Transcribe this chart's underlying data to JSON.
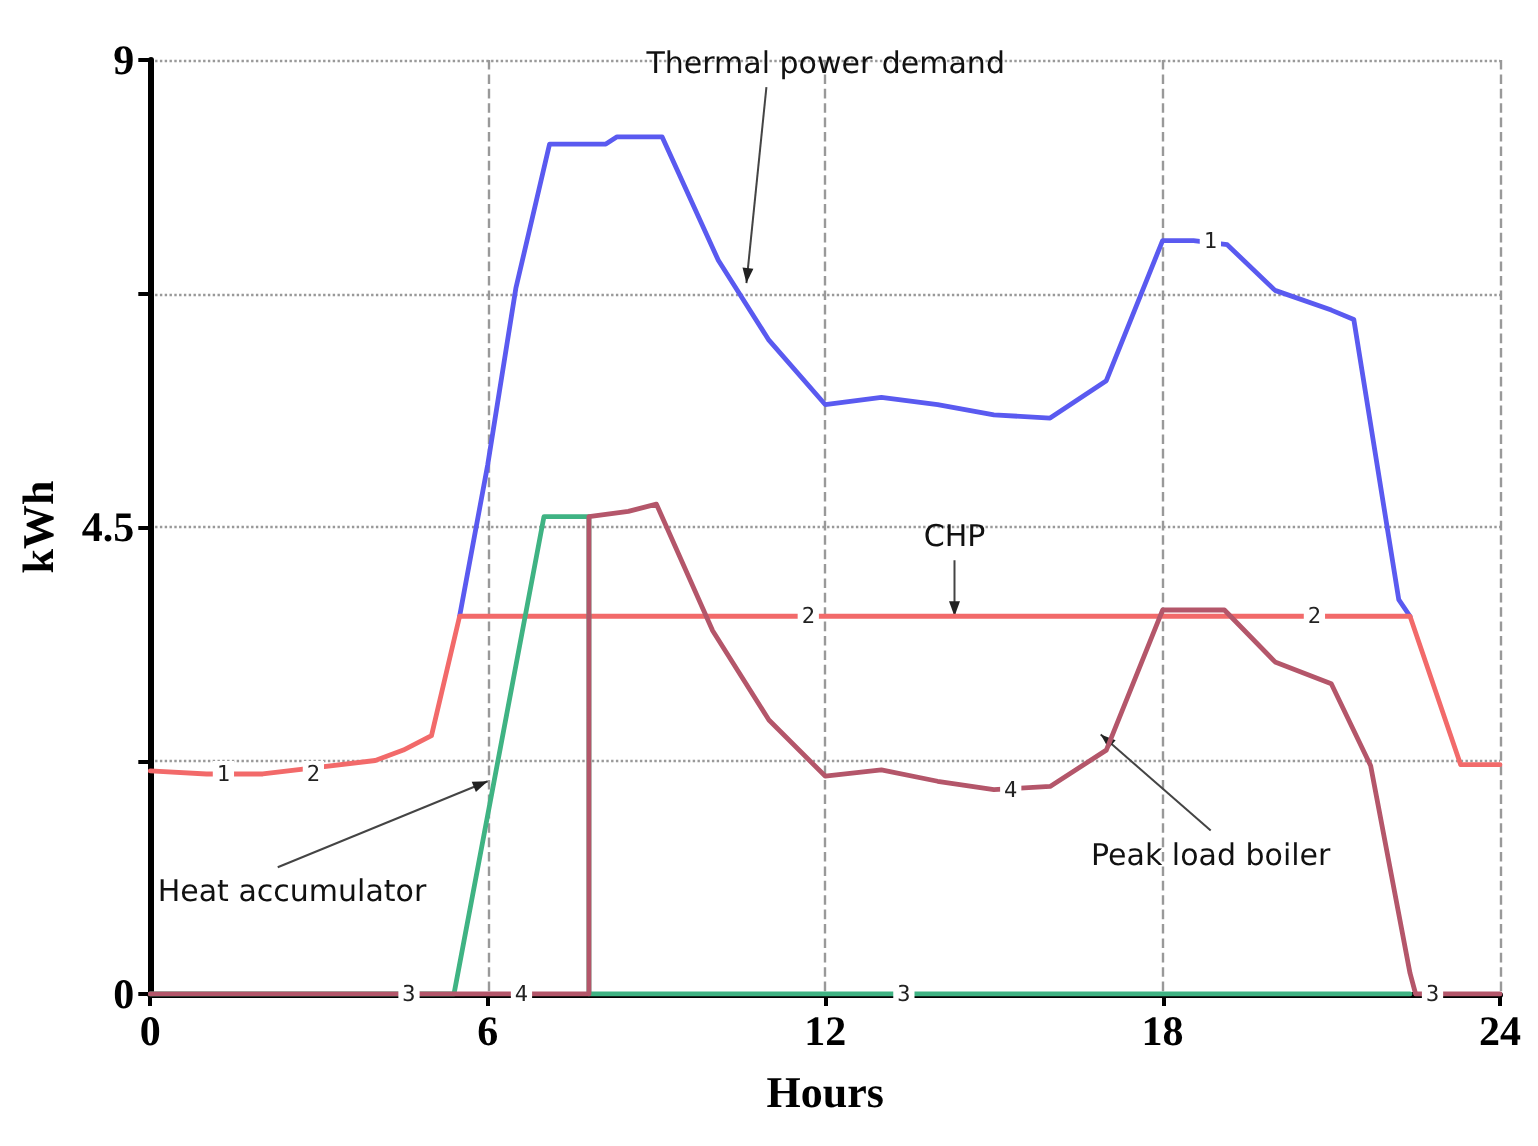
{
  "chart_data": {
    "type": "line",
    "xlabel": "Hours",
    "ylabel": "kWh",
    "xlim": [
      0,
      24
    ],
    "xticks": [
      0,
      6,
      12,
      18,
      24
    ],
    "ylim": [
      0,
      9
    ],
    "yticks": [
      0,
      {
        "value": 2.25,
        "label": null
      },
      4.5,
      {
        "value": 6.75,
        "label": null
      },
      9
    ],
    "grid": true,
    "marker": "none",
    "line_style": "solid",
    "series": [
      {
        "color": "#5a5af0",
        "x": [
          5.5,
          6.0,
          6.5,
          7.1,
          8.1,
          8.3,
          9.1,
          10.1,
          11.0,
          12.0,
          13.0,
          14.0,
          15.0,
          16.0,
          17.0,
          18.0,
          18.55,
          19.15,
          20.0,
          21.0,
          21.4,
          22.2,
          22.4
        ],
        "values": [
          3.64,
          5.1,
          6.8,
          8.19,
          8.19,
          8.26,
          8.26,
          7.07,
          6.3,
          5.68,
          5.75,
          5.68,
          5.58,
          5.55,
          5.91,
          7.26,
          7.26,
          7.22,
          6.78,
          6.59,
          6.5,
          3.8,
          3.64
        ]
      },
      {
        "color": "#f26a6a",
        "x": [
          0,
          1.0,
          2.0,
          4.0,
          4.5,
          5.0,
          5.5,
          12.0,
          18.0,
          22.4,
          23.3,
          24
        ],
        "values": [
          2.15,
          2.12,
          2.12,
          2.25,
          2.35,
          2.49,
          3.64,
          3.64,
          3.64,
          3.64,
          2.21,
          2.21
        ]
      },
      {
        "color": "#3fb383",
        "x": [
          0,
          5.4,
          7.0,
          7.8,
          7.8,
          22.4
        ],
        "values": [
          0,
          0,
          4.6,
          4.6,
          0,
          0
        ]
      },
      {
        "color": "#b4566a",
        "x": [
          0,
          7.8,
          7.8,
          8.5,
          9.0,
          10.0,
          11.0,
          12.0,
          13.0,
          14.0,
          15.0,
          16.0,
          17.0,
          18.0,
          19.1,
          20.0,
          21.0,
          21.7,
          22.4,
          22.5,
          24
        ],
        "values": [
          0,
          0,
          4.6,
          4.65,
          4.72,
          3.5,
          2.64,
          2.1,
          2.16,
          2.05,
          1.97,
          2.0,
          2.35,
          3.7,
          3.7,
          3.2,
          2.99,
          2.2,
          0.2,
          0,
          0
        ]
      }
    ],
    "annotations": [
      {
        "text": "Thermal power demand",
        "x": 10.6,
        "y": 6.85
      },
      {
        "text": "CHP",
        "x": 14.3,
        "y": 3.64
      },
      {
        "text": "Heat accumulator",
        "x": 6.0,
        "y": 2.05
      },
      {
        "text": "Peak load boiler",
        "x": 16.9,
        "y": 2.5
      },
      {
        "text": "1",
        "x": 1.3,
        "y": 2.12
      },
      {
        "text": "2",
        "x": 2.9,
        "y": 2.12
      },
      {
        "text": "2",
        "x": 11.7,
        "y": 3.64
      },
      {
        "text": "2",
        "x": 20.7,
        "y": 3.64
      },
      {
        "text": "1",
        "x": 18.85,
        "y": 7.26
      },
      {
        "text": "3",
        "x": 4.6,
        "y": 0
      },
      {
        "text": "4",
        "x": 6.6,
        "y": 0
      },
      {
        "text": "3",
        "x": 13.4,
        "y": 0
      },
      {
        "text": "3",
        "x": 22.8,
        "y": 0
      },
      {
        "text": "4",
        "x": 15.3,
        "y": 1.97
      }
    ]
  }
}
